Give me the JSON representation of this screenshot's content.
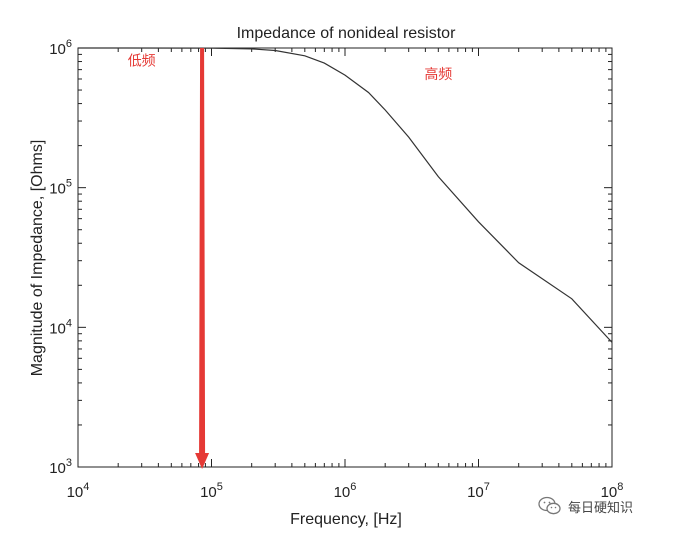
{
  "chart_data": {
    "type": "line",
    "title": "Impedance of nonideal resistor",
    "xlabel": "Frequency, [Hz]",
    "ylabel": "Magnitude of Impedance, [Ohms]",
    "x_scale": "log",
    "y_scale": "log",
    "xlim": [
      10000,
      100000000
    ],
    "ylim": [
      1000,
      1000000
    ],
    "grid": false,
    "x_ticks": [
      {
        "base": "10",
        "exp": "4",
        "value": 10000
      },
      {
        "base": "10",
        "exp": "5",
        "value": 100000
      },
      {
        "base": "10",
        "exp": "6",
        "value": 1000000
      },
      {
        "base": "10",
        "exp": "7",
        "value": 10000000
      },
      {
        "base": "10",
        "exp": "8",
        "value": 100000000
      }
    ],
    "y_ticks": [
      {
        "base": "10",
        "exp": "3",
        "value": 1000
      },
      {
        "base": "10",
        "exp": "4",
        "value": 10000
      },
      {
        "base": "10",
        "exp": "5",
        "value": 100000
      },
      {
        "base": "10",
        "exp": "6",
        "value": 1000000
      }
    ],
    "series": [
      {
        "color": "#333333",
        "points": [
          {
            "x": 10000,
            "y": 1000000
          },
          {
            "x": 100000,
            "y": 999000
          },
          {
            "x": 200000,
            "y": 985000
          },
          {
            "x": 300000,
            "y": 960000
          },
          {
            "x": 500000,
            "y": 880000
          },
          {
            "x": 700000,
            "y": 780000
          },
          {
            "x": 1000000,
            "y": 640000
          },
          {
            "x": 1500000,
            "y": 480000
          },
          {
            "x": 2000000,
            "y": 360000
          },
          {
            "x": 3000000,
            "y": 230000
          },
          {
            "x": 5000000,
            "y": 120000
          },
          {
            "x": 10000000,
            "y": 57000
          },
          {
            "x": 20000000,
            "y": 29000
          },
          {
            "x": 50000000,
            "y": 16000
          },
          {
            "x": 100000000,
            "y": 7800
          }
        ]
      }
    ],
    "annotations": [
      {
        "text": "低频",
        "x": 30000,
        "y": 750000,
        "color": "#e53935"
      },
      {
        "text": "高频",
        "x": 5000000,
        "y": 600000,
        "color": "#e53935"
      }
    ],
    "marker": {
      "x": 85000,
      "color": "#e53935"
    }
  },
  "watermark": {
    "text": "每日硬知识",
    "icon": "wechat-logo-icon"
  }
}
